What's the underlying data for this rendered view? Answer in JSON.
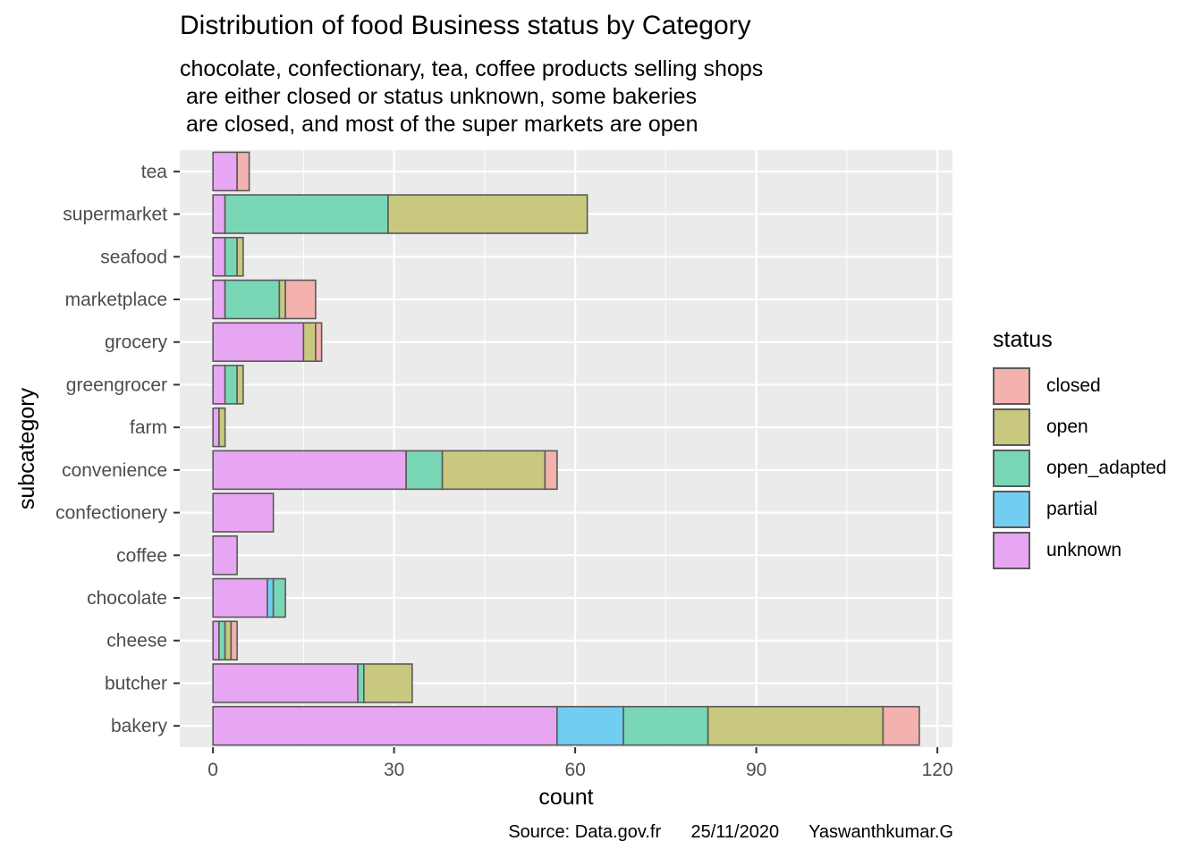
{
  "chart_data": {
    "type": "bar",
    "orientation": "horizontal",
    "stacked": true,
    "title": "Distribution of food Business status by Category",
    "subtitle": [
      "chocolate, confectionary, tea, coffee products selling shops",
      " are either closed or status unknown, some bakeries",
      " are closed, and most of the super markets are open"
    ],
    "xlabel": "count",
    "ylabel": "subcategory",
    "xlim": [
      -5.5,
      122.5
    ],
    "x_ticks": [
      0,
      30,
      60,
      90,
      120
    ],
    "grid": true,
    "legend_title": "status",
    "legend_position": "right",
    "caption": "Source: Data.gov.fr      25/11/2020      Yaswanthkumar.G",
    "categories": [
      "bakery",
      "butcher",
      "cheese",
      "chocolate",
      "coffee",
      "confectionery",
      "convenience",
      "farm",
      "greengrocer",
      "grocery",
      "marketplace",
      "seafood",
      "supermarket",
      "tea"
    ],
    "series": [
      {
        "name": "unknown",
        "color": "#E7A6F1",
        "values": [
          57,
          24,
          1,
          9,
          4,
          10,
          32,
          1,
          2,
          15,
          2,
          2,
          2,
          4
        ]
      },
      {
        "name": "partial",
        "color": "#72CDF3",
        "values": [
          11,
          0,
          0,
          1,
          0,
          0,
          0,
          0,
          0,
          0,
          0,
          0,
          0,
          0
        ]
      },
      {
        "name": "open_adapted",
        "color": "#7AD7B6",
        "values": [
          14,
          1,
          1,
          2,
          0,
          0,
          6,
          0,
          2,
          0,
          9,
          2,
          27,
          0
        ]
      },
      {
        "name": "open",
        "color": "#C8C97E",
        "values": [
          29,
          8,
          1,
          0,
          0,
          0,
          17,
          1,
          1,
          2,
          1,
          1,
          33,
          0
        ]
      },
      {
        "name": "closed",
        "color": "#F3B2AD",
        "values": [
          6,
          0,
          1,
          0,
          0,
          0,
          2,
          0,
          0,
          1,
          5,
          0,
          0,
          2
        ]
      }
    ],
    "legend_order": [
      "closed",
      "open",
      "open_adapted",
      "partial",
      "unknown"
    ]
  }
}
